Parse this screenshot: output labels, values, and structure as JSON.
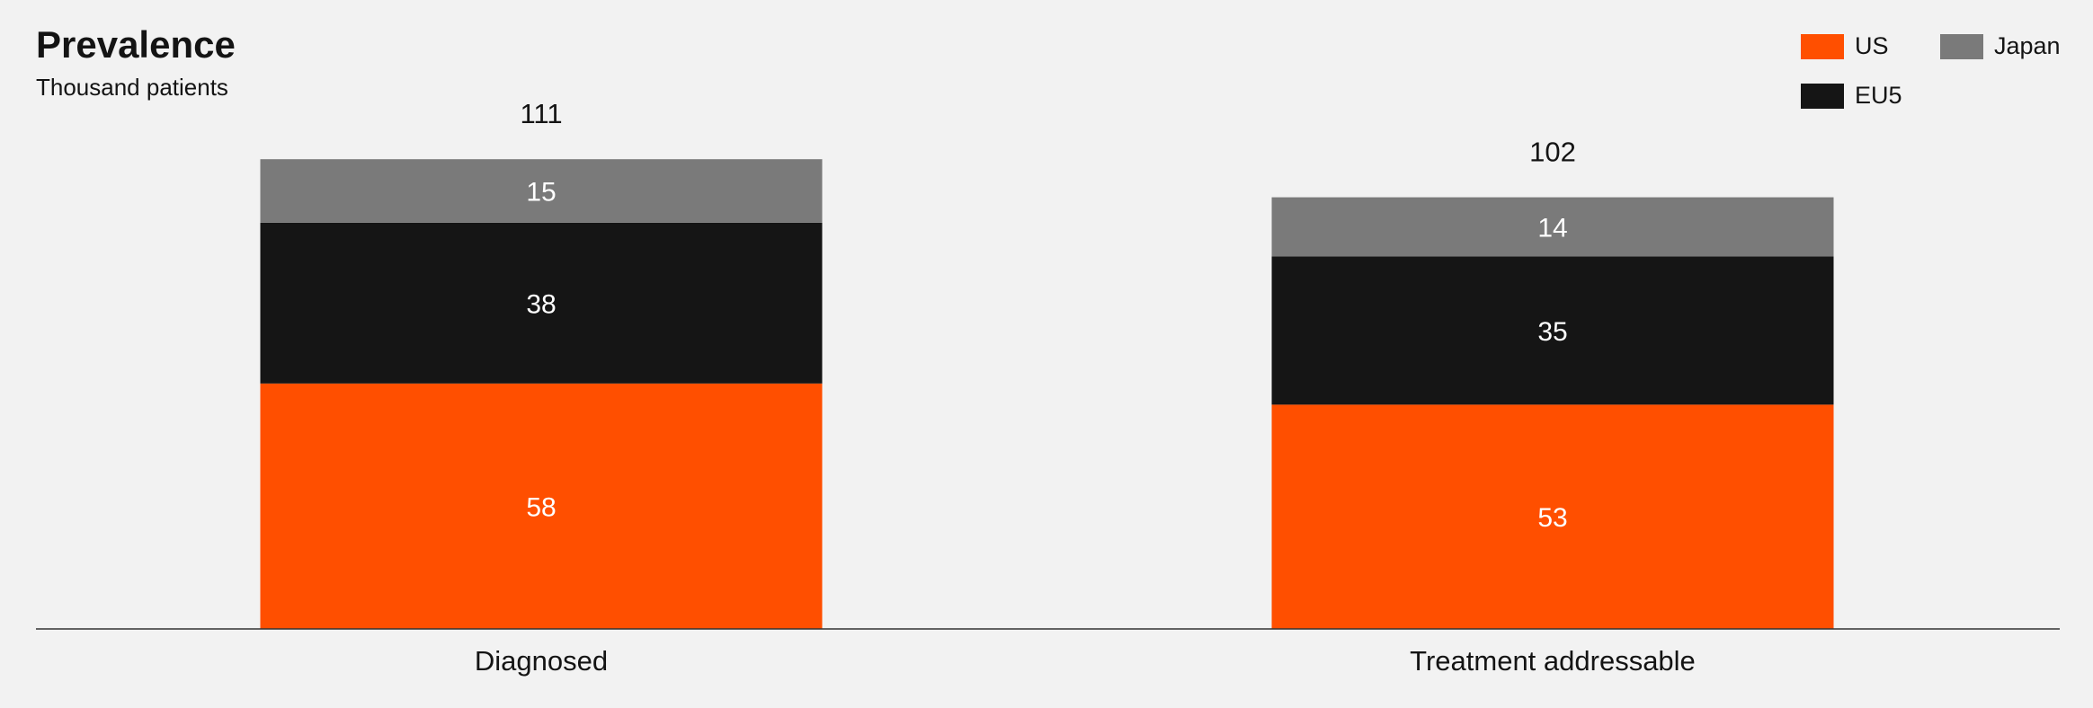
{
  "chart_data": {
    "type": "bar",
    "stacked": true,
    "title": "Prevalence",
    "subtitle": "Thousand patients",
    "categories": [
      "Diagnosed",
      "Treatment addressable"
    ],
    "series": [
      {
        "name": "US",
        "values": [
          58,
          53
        ],
        "color": "#ff4f00"
      },
      {
        "name": "EU5",
        "values": [
          38,
          35
        ],
        "color": "#151515"
      },
      {
        "name": "Japan",
        "values": [
          15,
          14
        ],
        "color": "#7a7a7a"
      }
    ],
    "totals": [
      111,
      102
    ],
    "legend_position": "top-right",
    "grid": false
  }
}
